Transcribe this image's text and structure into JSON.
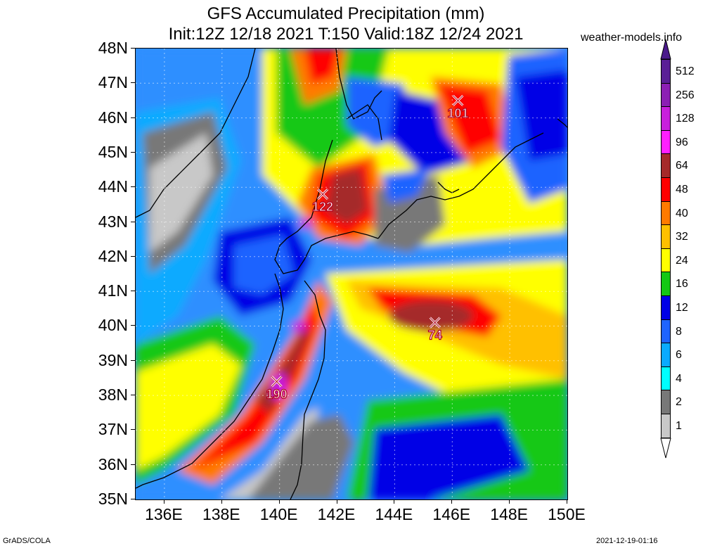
{
  "title_line1": "GFS Accumulated Precipitation (mm)",
  "title_line2": "Init:12Z 12/18 2021 T:150 Valid:18Z 12/24 2021",
  "source": "weather-models.info",
  "footer_left": "GrADS/COLA",
  "footer_right": "2021-12-19-01:16",
  "lat_labels": [
    "48N",
    "47N",
    "46N",
    "45N",
    "44N",
    "43N",
    "42N",
    "41N",
    "40N",
    "39N",
    "38N",
    "37N",
    "36N",
    "35N"
  ],
  "lon_labels": [
    "136E",
    "138E",
    "140E",
    "142E",
    "144E",
    "146E",
    "148E",
    "150E"
  ],
  "colorbar": {
    "levels": [
      "512",
      "256",
      "128",
      "96",
      "64",
      "48",
      "40",
      "32",
      "24",
      "16",
      "12",
      "8",
      "6",
      "4",
      "2",
      "1"
    ],
    "colors": [
      "#5a1f96",
      "#8c1fb4",
      "#c81fdc",
      "#ff1fff",
      "#a52a2a",
      "#ff0000",
      "#ff7a00",
      "#ffc000",
      "#ffff00",
      "#14c814",
      "#0000e6",
      "#1e64ff",
      "#0aaaff",
      "#00ffff",
      "#787878",
      "#c8c8c8"
    ]
  },
  "markers": [
    {
      "lon": 146.2,
      "lat": 46.5,
      "value": "101"
    },
    {
      "lon": 141.5,
      "lat": 43.8,
      "value": "122"
    },
    {
      "lon": 145.4,
      "lat": 40.1,
      "value": "74"
    },
    {
      "lon": 139.9,
      "lat": 38.4,
      "value": "190"
    }
  ],
  "map_extent": {
    "lon_min": 135,
    "lon_max": 150,
    "lat_min": 35,
    "lat_max": 48
  }
}
